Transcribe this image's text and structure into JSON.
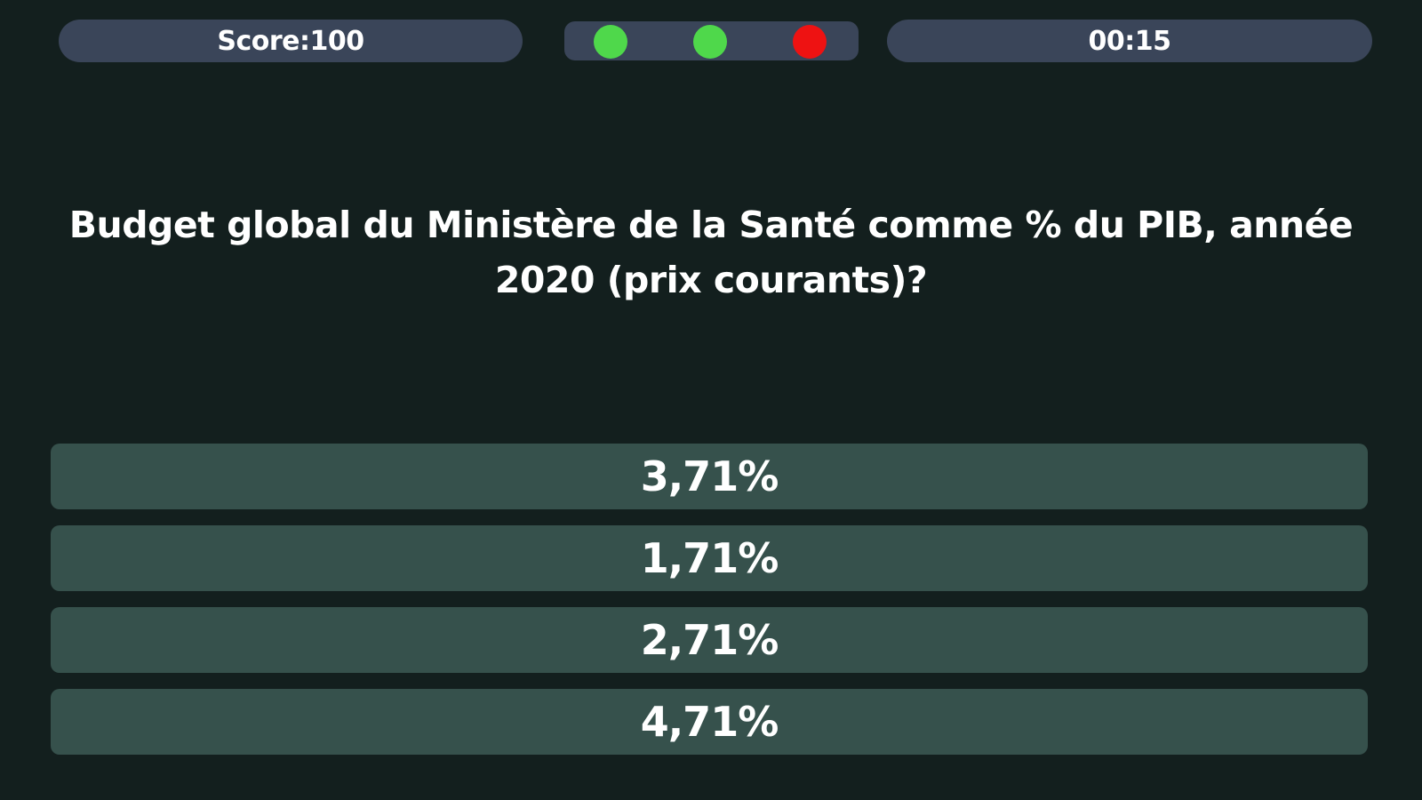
{
  "hud": {
    "score_text": "Score:100",
    "timer_text": "00:15",
    "progress": [
      {
        "result": "correct",
        "color": "#4fd84b"
      },
      {
        "result": "correct",
        "color": "#4fd84b"
      },
      {
        "result": "wrong",
        "color": "#ee1212"
      }
    ]
  },
  "question": {
    "text": "Budget global du Ministère de la Santé comme % du PIB, année 2020 (prix courants)?"
  },
  "answers": [
    {
      "label": "3,71%"
    },
    {
      "label": "1,71%"
    },
    {
      "label": "2,71%"
    },
    {
      "label": "4,71%"
    }
  ],
  "colors": {
    "background": "#131f1e",
    "hud_pill": "#3a4559",
    "answer_button": "#36514c",
    "text": "#ffffff"
  }
}
